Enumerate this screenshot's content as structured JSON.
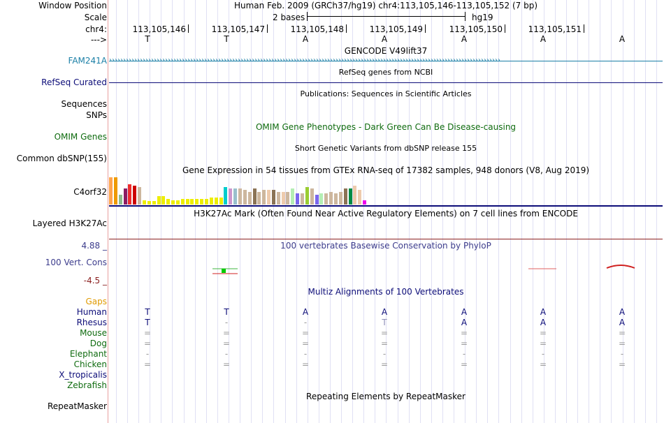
{
  "header": {
    "window_position_label": "Window Position",
    "window_position_text": "Human Feb. 2009 (GRCh37/hg19)   chr4:113,105,146-113,105,152 (7 bp)",
    "scale_label": "Scale",
    "scale_text": "2 bases",
    "scale_assembly": "hg19",
    "chrom_label": "chr4:",
    "strand_label": "--->",
    "positions": [
      "113,105,146",
      "113,105,147",
      "113,105,148",
      "113,105,149",
      "113,105,150",
      "113,105,151"
    ],
    "bases": [
      "T",
      "T",
      "A",
      "A",
      "A",
      "A",
      "A"
    ]
  },
  "tracks": {
    "gencode": {
      "title": "GENCODE V49lift37",
      "gene": "FAM241A",
      "color": "#1a7fa6"
    },
    "refseq": {
      "label": "RefSeq Curated",
      "title": "RefSeq genes from NCBI",
      "color": "#0c0c78"
    },
    "publications": {
      "title": "Publications: Sequences in Scientific Articles"
    },
    "sequences": {
      "label": "Sequences"
    },
    "snps": {
      "label": "SNPs"
    },
    "omim": {
      "label": "OMIM Genes",
      "title": "OMIM Gene Phenotypes - Dark Green Can Be Disease-causing",
      "color": "#0f6b0f"
    },
    "dbsnp": {
      "label": "Common dbSNP(155)",
      "title": "Short Genetic Variants from dbSNP release 155"
    },
    "gtex": {
      "label": "C4orf32",
      "title": "Gene Expression in 54 tissues from GTEx RNA-seq of 17382 samples, 948 donors (V8, Aug 2019)",
      "bar_fractions": [
        0.95,
        0.95,
        0.35,
        0.55,
        0.7,
        0.65,
        0.6,
        0.15,
        0.12,
        0.12,
        0.3,
        0.3,
        0.2,
        0.15,
        0.15,
        0.2,
        0.2,
        0.2,
        0.2,
        0.2,
        0.2,
        0.25,
        0.25,
        0.25,
        0.6,
        0.55,
        0.55,
        0.55,
        0.5,
        0.45,
        0.55,
        0.45,
        0.5,
        0.5,
        0.5,
        0.45,
        0.45,
        0.45,
        0.55,
        0.4,
        0.4,
        0.6,
        0.55,
        0.35,
        0.4,
        0.4,
        0.45,
        0.4,
        0.45,
        0.55,
        0.55,
        0.65,
        0.5,
        0.15
      ],
      "bar_colors": [
        "#ffa54f",
        "#ee9a00",
        "#8fbc8f",
        "#8b1c62",
        "#ee2c2c",
        "#cd0000",
        "#cdb79e",
        "#eeee00",
        "#eeee00",
        "#eeee00",
        "#eeee00",
        "#eeee00",
        "#eeee00",
        "#eeee00",
        "#eeee00",
        "#eeee00",
        "#eeee00",
        "#eeee00",
        "#eeee00",
        "#eeee00",
        "#eeee00",
        "#eeee00",
        "#eeee00",
        "#eeee00",
        "#00cdcd",
        "#cd96cd",
        "#9ac0cd",
        "#cdb79e",
        "#cdb79e",
        "#cdb79e",
        "#8b7355",
        "#cdb79e",
        "#cdb79e",
        "#eecbad",
        "#8b7355",
        "#cdb79e",
        "#eecbad",
        "#cdb79e",
        "#b4eeb4",
        "#7a67ee",
        "#cdb79e",
        "#9acd32",
        "#cdb79e",
        "#7a67ee",
        "#b4eeb4",
        "#cdb79e",
        "#cdb79e",
        "#cdb79e",
        "#cdb79e",
        "#8b7355",
        "#008b45",
        "#eecbad",
        "#eecbad",
        "#ee00ee"
      ]
    },
    "h3k27ac": {
      "label": "Layered H3K27Ac",
      "title": "H3K27Ac Mark (Often Found Near Active Regulatory Elements) on 7 cell lines from ENCODE"
    },
    "phylop": {
      "label": "100 Vert. Cons",
      "title": "100 vertebrates Basewise Conservation by PhyloP",
      "max_label": "4.88 _",
      "min_label": "-4.5 _",
      "color": "#3c3c8c"
    },
    "multiz": {
      "title": "Multiz Alignments of 100 Vertebrates",
      "gaps_label": "Gaps",
      "species": [
        {
          "name": "Human",
          "color": "#0c0c78",
          "values": [
            "T",
            "T",
            "A",
            "A",
            "A",
            "A",
            "A"
          ]
        },
        {
          "name": "Rhesus",
          "color": "#0c0c78",
          "values": [
            "T",
            "-",
            "-",
            "T",
            "A",
            "A",
            "A"
          ]
        },
        {
          "name": "Mouse",
          "color": "#0f6b0f",
          "values": [
            "=",
            "=",
            "=",
            "=",
            "=",
            "=",
            "="
          ]
        },
        {
          "name": "Dog",
          "color": "#0f6b0f",
          "values": [
            "=",
            "=",
            "=",
            "=",
            "=",
            "=",
            "="
          ]
        },
        {
          "name": "Elephant",
          "color": "#0f6b0f",
          "values": [
            "-",
            "-",
            "-",
            "-",
            "-",
            "-",
            "-"
          ]
        },
        {
          "name": "Chicken",
          "color": "#0f6b0f",
          "values": [
            "=",
            "=",
            "=",
            "=",
            "=",
            "=",
            "="
          ]
        },
        {
          "name": "X_tropicalis",
          "color": "#0c0c78",
          "values": [
            "",
            "",
            "",
            "",
            "",
            "",
            ""
          ]
        },
        {
          "name": "Zebrafish",
          "color": "#0f6b0f",
          "values": [
            "",
            "",
            "",
            "",
            "",
            "",
            ""
          ]
        }
      ]
    },
    "repeatmasker": {
      "label": "RepeatMasker",
      "title": "Repeating Elements by RepeatMasker"
    }
  }
}
